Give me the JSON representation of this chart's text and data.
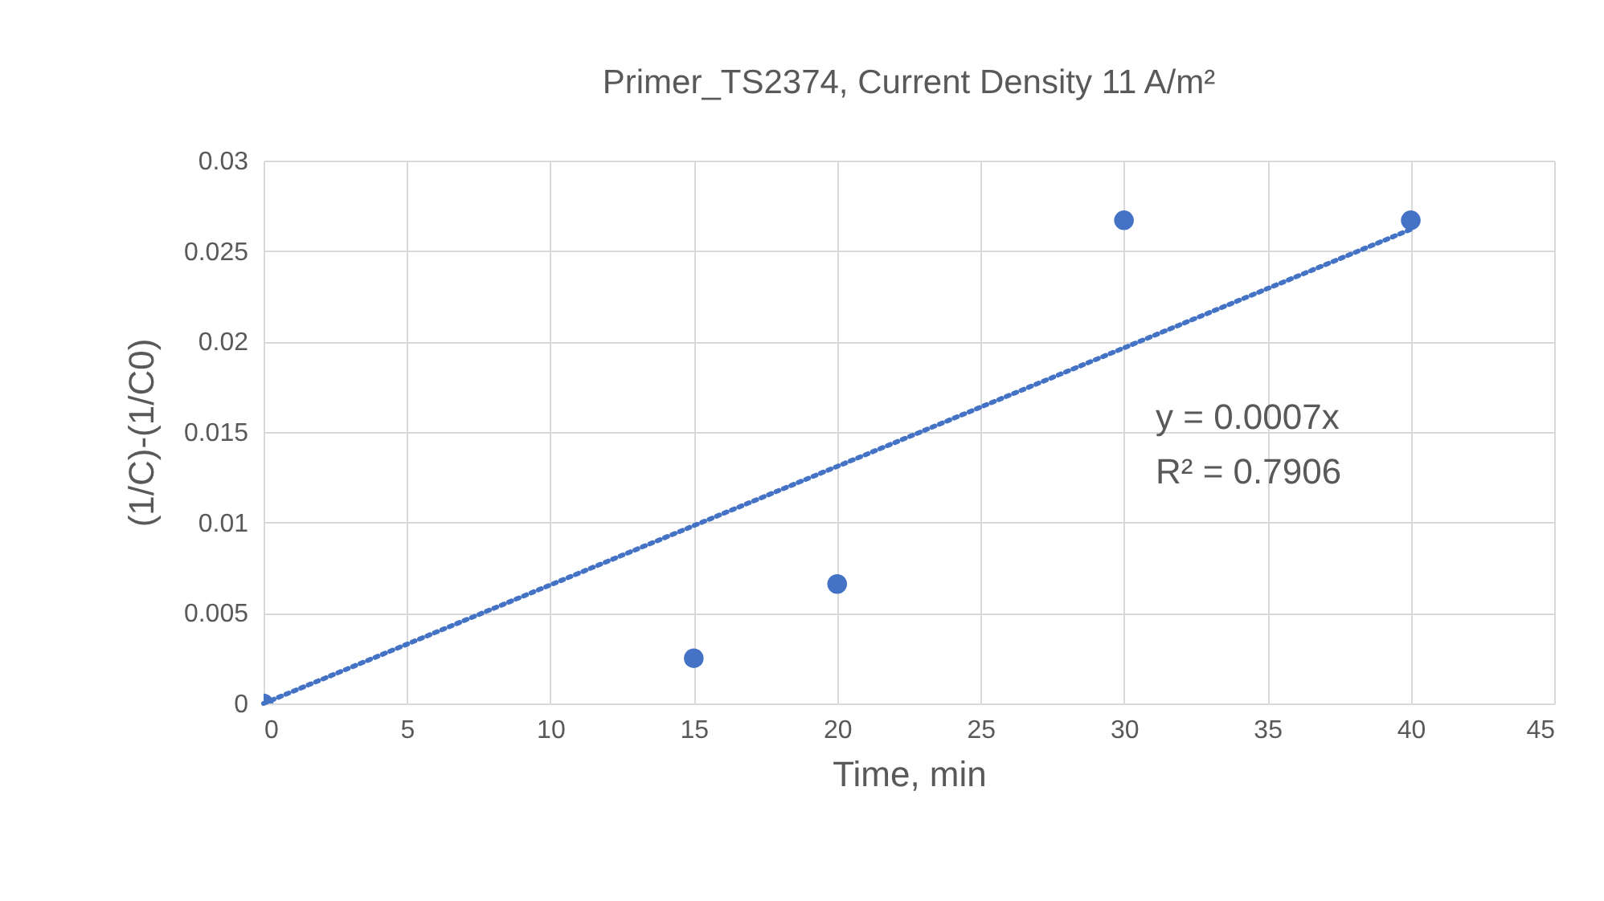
{
  "chart_data": {
    "type": "scatter",
    "title": "Primer_TS2374, Current Density 11 A/m²",
    "xlabel": "Time, min",
    "ylabel": "(1/C)-(1/C0)",
    "x": [
      0,
      15,
      20,
      30,
      40
    ],
    "series": [
      {
        "color": "#4472c4",
        "values": [
          0,
          0.0025,
          0.0066,
          0.0267,
          0.0267
        ],
        "marker": "circle"
      },
      {
        "type": "line",
        "color": "#4472c4",
        "x": [
          0,
          40
        ],
        "values": [
          0,
          0.0262
        ],
        "line_style": "dotted"
      }
    ],
    "xlim": [
      0,
      45
    ],
    "xticks": [
      0,
      5,
      10,
      15,
      20,
      25,
      30,
      35,
      40,
      45
    ],
    "ylim": [
      0,
      0.03
    ],
    "yticks": [
      0,
      0.005,
      0.01,
      0.015,
      0.02,
      0.025,
      0.03
    ],
    "grid": true,
    "annotations": [
      "y = 0.0007x",
      "R² = 0.7906"
    ]
  }
}
